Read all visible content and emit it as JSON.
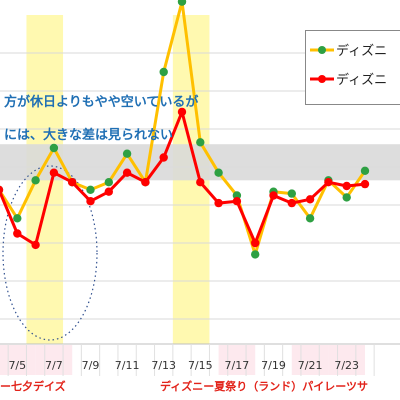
{
  "annotations": {
    "line1": "方が休日よりもやや空いているが",
    "line2": "には、大きな差は見られない"
  },
  "events": {
    "left": "ー七夕デイズ",
    "right": "ディズニー夏祭り（ランド）パイレーツサ"
  },
  "colors": {
    "series1_line": "#ffc000",
    "series1_marker": "#2ea043",
    "series2_line": "#ff0000",
    "series2_marker": "#ff0000",
    "highlight": "#fff9b0",
    "band": "#d9d9d9",
    "annotation_text": "#1f6fb4",
    "event_text": "#e2231a",
    "tick_weekend_bg": "#fde9ee"
  },
  "chart_data": {
    "type": "line",
    "x": [
      "7/4",
      "7/5",
      "7/6",
      "7/7",
      "7/8",
      "7/9",
      "7/10",
      "7/11",
      "7/12",
      "7/13",
      "7/14",
      "7/15",
      "7/16",
      "7/17",
      "7/18",
      "7/19",
      "7/20",
      "7/21",
      "7/22",
      "7/23",
      "7/24"
    ],
    "tick_labels": [
      "7/5",
      "7/7",
      "7/9",
      "7/11",
      "7/13",
      "7/15",
      "7/17",
      "7/19",
      "7/21",
      "7/23"
    ],
    "weekend_ticks": [
      "7/5",
      "7/7",
      "7/17",
      "7/21",
      "7/23"
    ],
    "series": [
      {
        "name": "ディズニ",
        "values": [
          262,
          277,
          257,
          240,
          258,
          262,
          258,
          243,
          258,
          200,
          163,
          237,
          253,
          265,
          296,
          263,
          264,
          277,
          257,
          266,
          252
        ]
      },
      {
        "name": "ディズニ",
        "values": [
          262,
          285,
          291,
          253,
          258,
          268,
          263,
          253,
          258,
          245,
          221,
          258,
          269,
          268,
          290,
          265,
          269,
          267,
          258,
          260,
          259
        ]
      }
    ],
    "highlight_ranges": [
      [
        "7/6",
        "7/7"
      ],
      [
        "7/14",
        "7/15"
      ]
    ],
    "reference_band": [
      238,
      257
    ],
    "ylim": [
      170,
      340
    ],
    "grid": true,
    "legend": "top-right"
  }
}
